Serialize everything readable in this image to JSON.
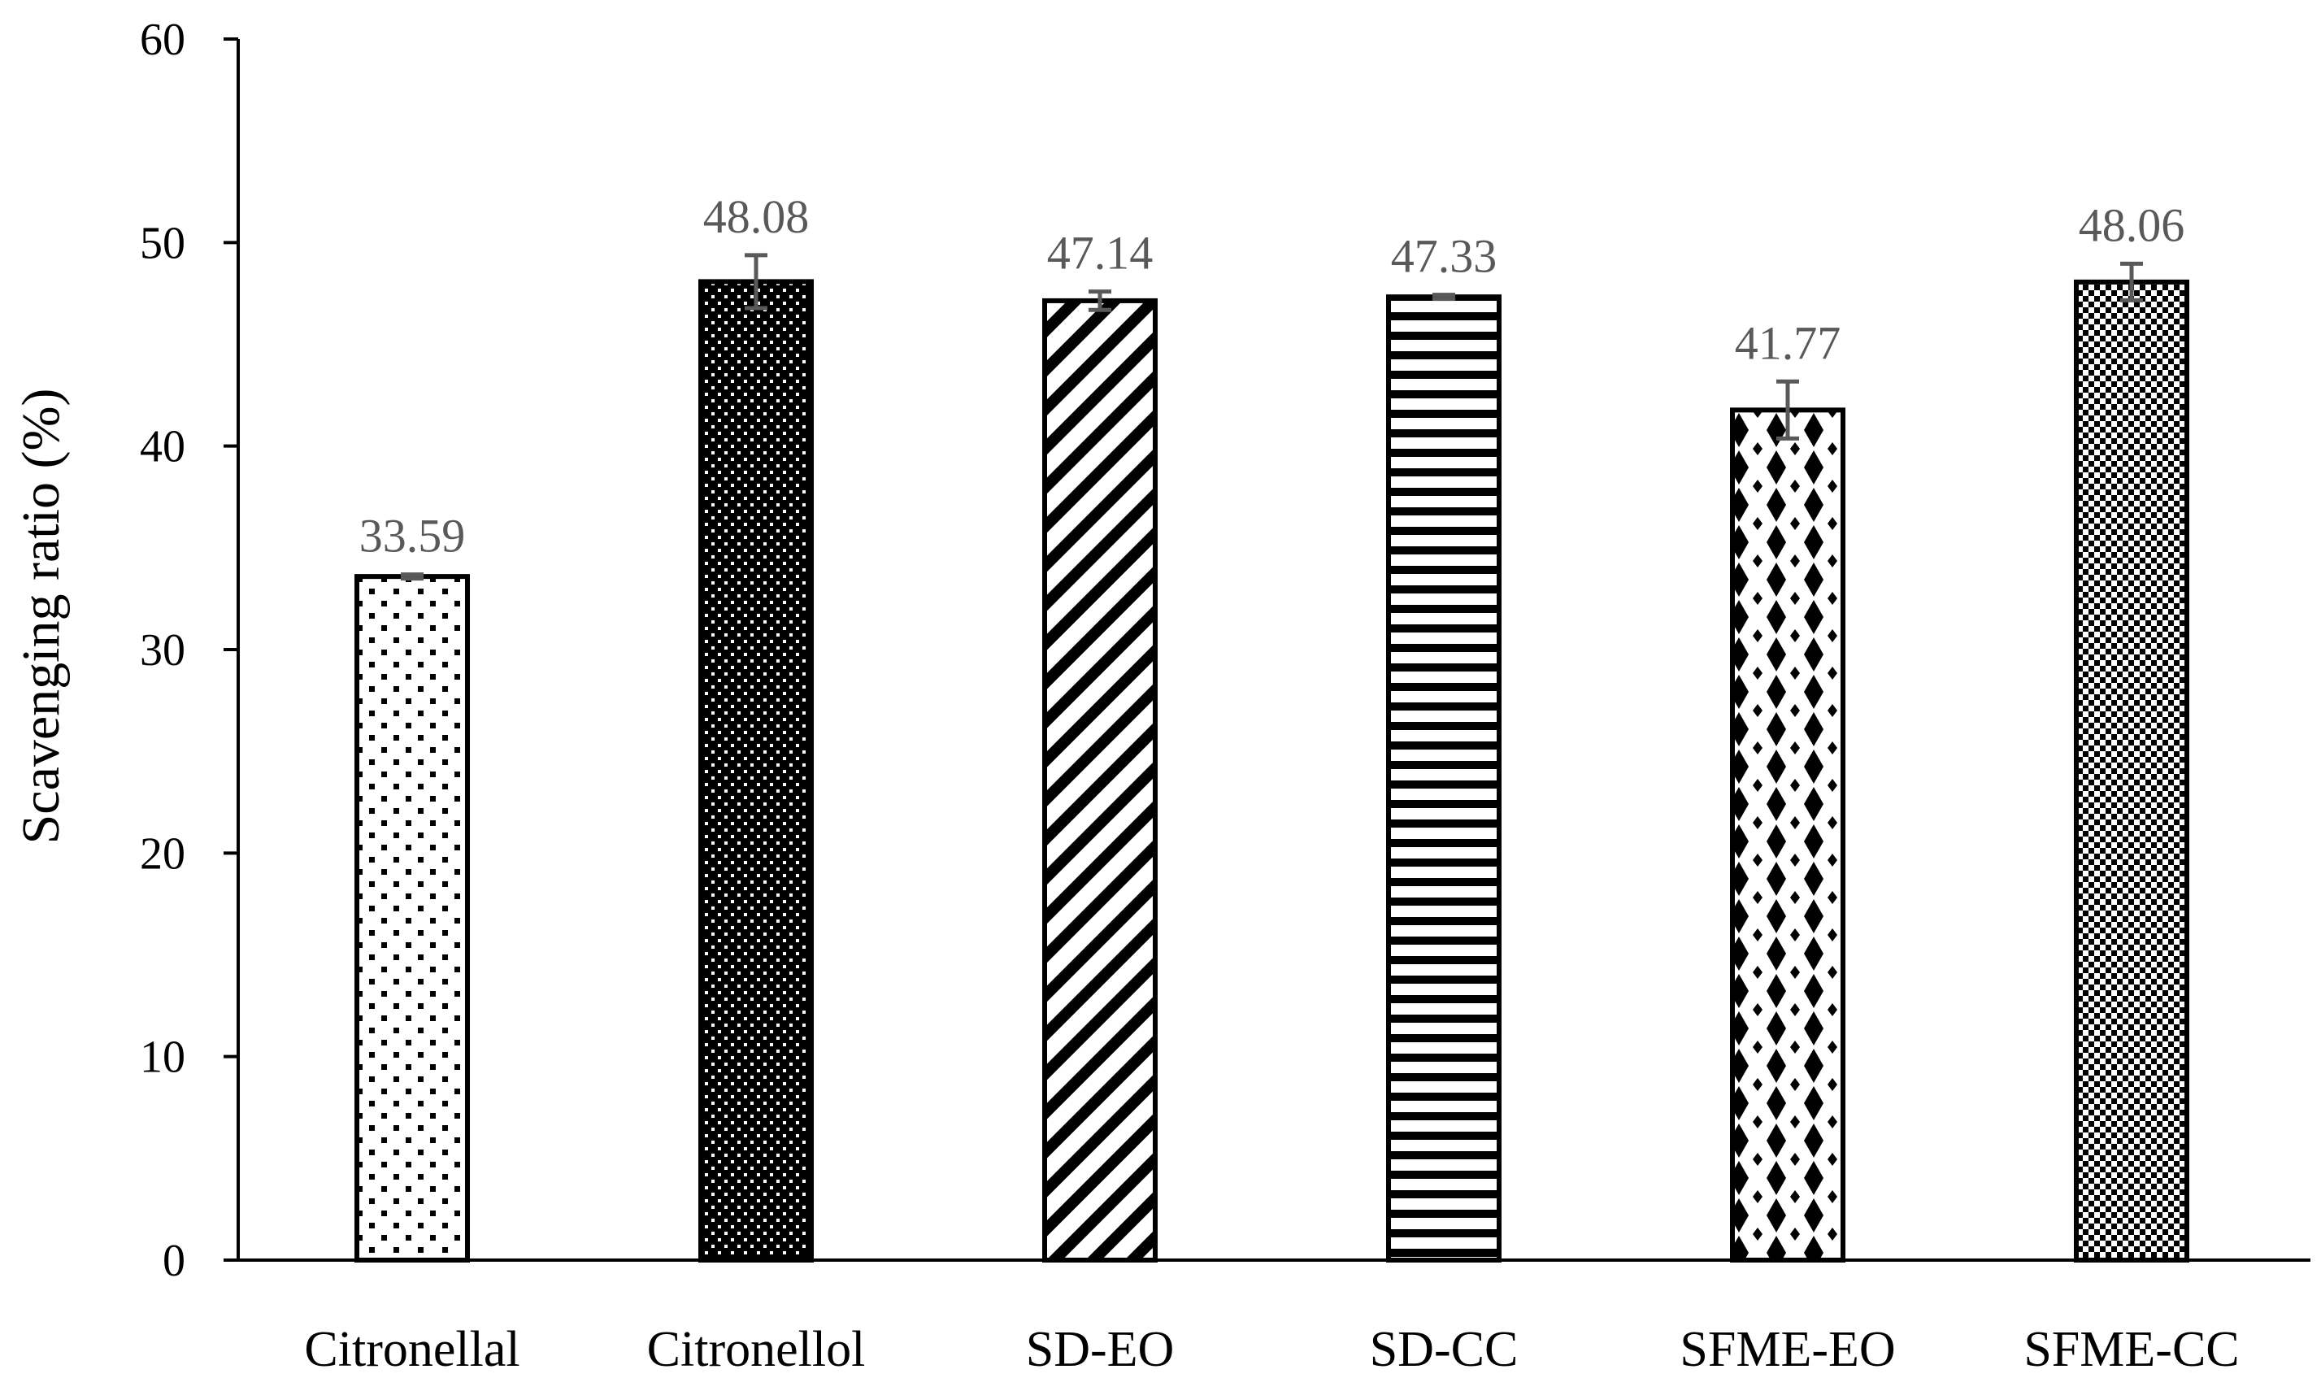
{
  "chart_data": {
    "type": "bar",
    "title": "",
    "xlabel": "",
    "ylabel": "Scavenging ratio (%)",
    "ylim": [
      0,
      60
    ],
    "yticks": [
      0,
      10,
      20,
      30,
      40,
      50,
      60
    ],
    "grid": false,
    "legend": "none",
    "categories": [
      "Citronellal",
      "Citronellol",
      "SD-EO",
      "SD-CC",
      "SFME-EO",
      "SFME-CC"
    ],
    "values": [
      33.59,
      48.08,
      47.14,
      47.33,
      41.77,
      48.06
    ],
    "errors": [
      0.1,
      1.3,
      0.45,
      0.1,
      1.4,
      0.9
    ],
    "data_labels": [
      "33.59",
      "48.08",
      "47.14",
      "47.33",
      "41.77",
      "48.06"
    ],
    "patterns": [
      "sparse-dots",
      "dense-dots",
      "diagonal-stripes",
      "horizontal-stripes",
      "diamonds",
      "checkerboard"
    ],
    "colors": {
      "bar_stroke": "#000000",
      "bar_fill_base": "#ffffff",
      "pattern_ink": "#000000",
      "error_bar": "#595959",
      "data_label": "#595959",
      "axis": "#000000"
    }
  }
}
